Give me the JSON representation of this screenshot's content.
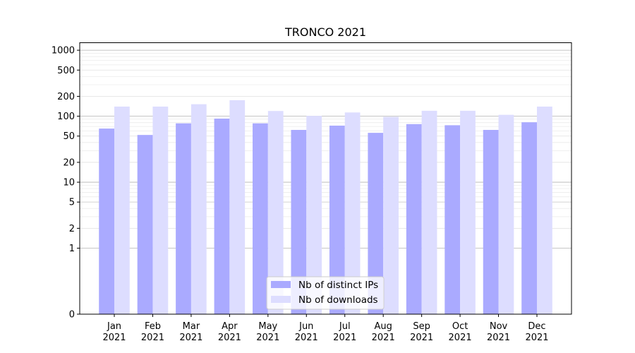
{
  "chart_data": {
    "type": "bar",
    "title": "TRONCO 2021",
    "xlabel": "",
    "ylabel": "",
    "yscale": "symlog",
    "ylim": [
      0,
      1300
    ],
    "y_ticks": [
      0,
      1,
      2,
      5,
      10,
      20,
      50,
      100,
      200,
      500,
      1000
    ],
    "y_tick_labels": [
      "0",
      "1",
      "2",
      "5",
      "10",
      "20",
      "50",
      "100",
      "200",
      "500",
      "1000"
    ],
    "grid": true,
    "legend_position": "bottom-center",
    "categories": [
      "Jan\n2021",
      "Feb\n2021",
      "Mar\n2021",
      "Apr\n2021",
      "May\n2021",
      "Jun\n2021",
      "Jul\n2021",
      "Aug\n2021",
      "Sep\n2021",
      "Oct\n2021",
      "Nov\n2021",
      "Dec\n2021"
    ],
    "category_month": [
      "Jan",
      "Feb",
      "Mar",
      "Apr",
      "May",
      "Jun",
      "Jul",
      "Aug",
      "Sep",
      "Oct",
      "Nov",
      "Dec"
    ],
    "category_year": [
      "2021",
      "2021",
      "2021",
      "2021",
      "2021",
      "2021",
      "2021",
      "2021",
      "2021",
      "2021",
      "2021",
      "2021"
    ],
    "series": [
      {
        "name": "Nb of distinct IPs",
        "color": "#aaaaff",
        "values": [
          65,
          52,
          78,
          92,
          78,
          62,
          72,
          56,
          76,
          73,
          62,
          81
        ]
      },
      {
        "name": "Nb of downloads",
        "color": "#ddddff",
        "values": [
          140,
          140,
          152,
          175,
          120,
          101,
          114,
          98,
          121,
          121,
          105,
          140
        ]
      }
    ]
  }
}
